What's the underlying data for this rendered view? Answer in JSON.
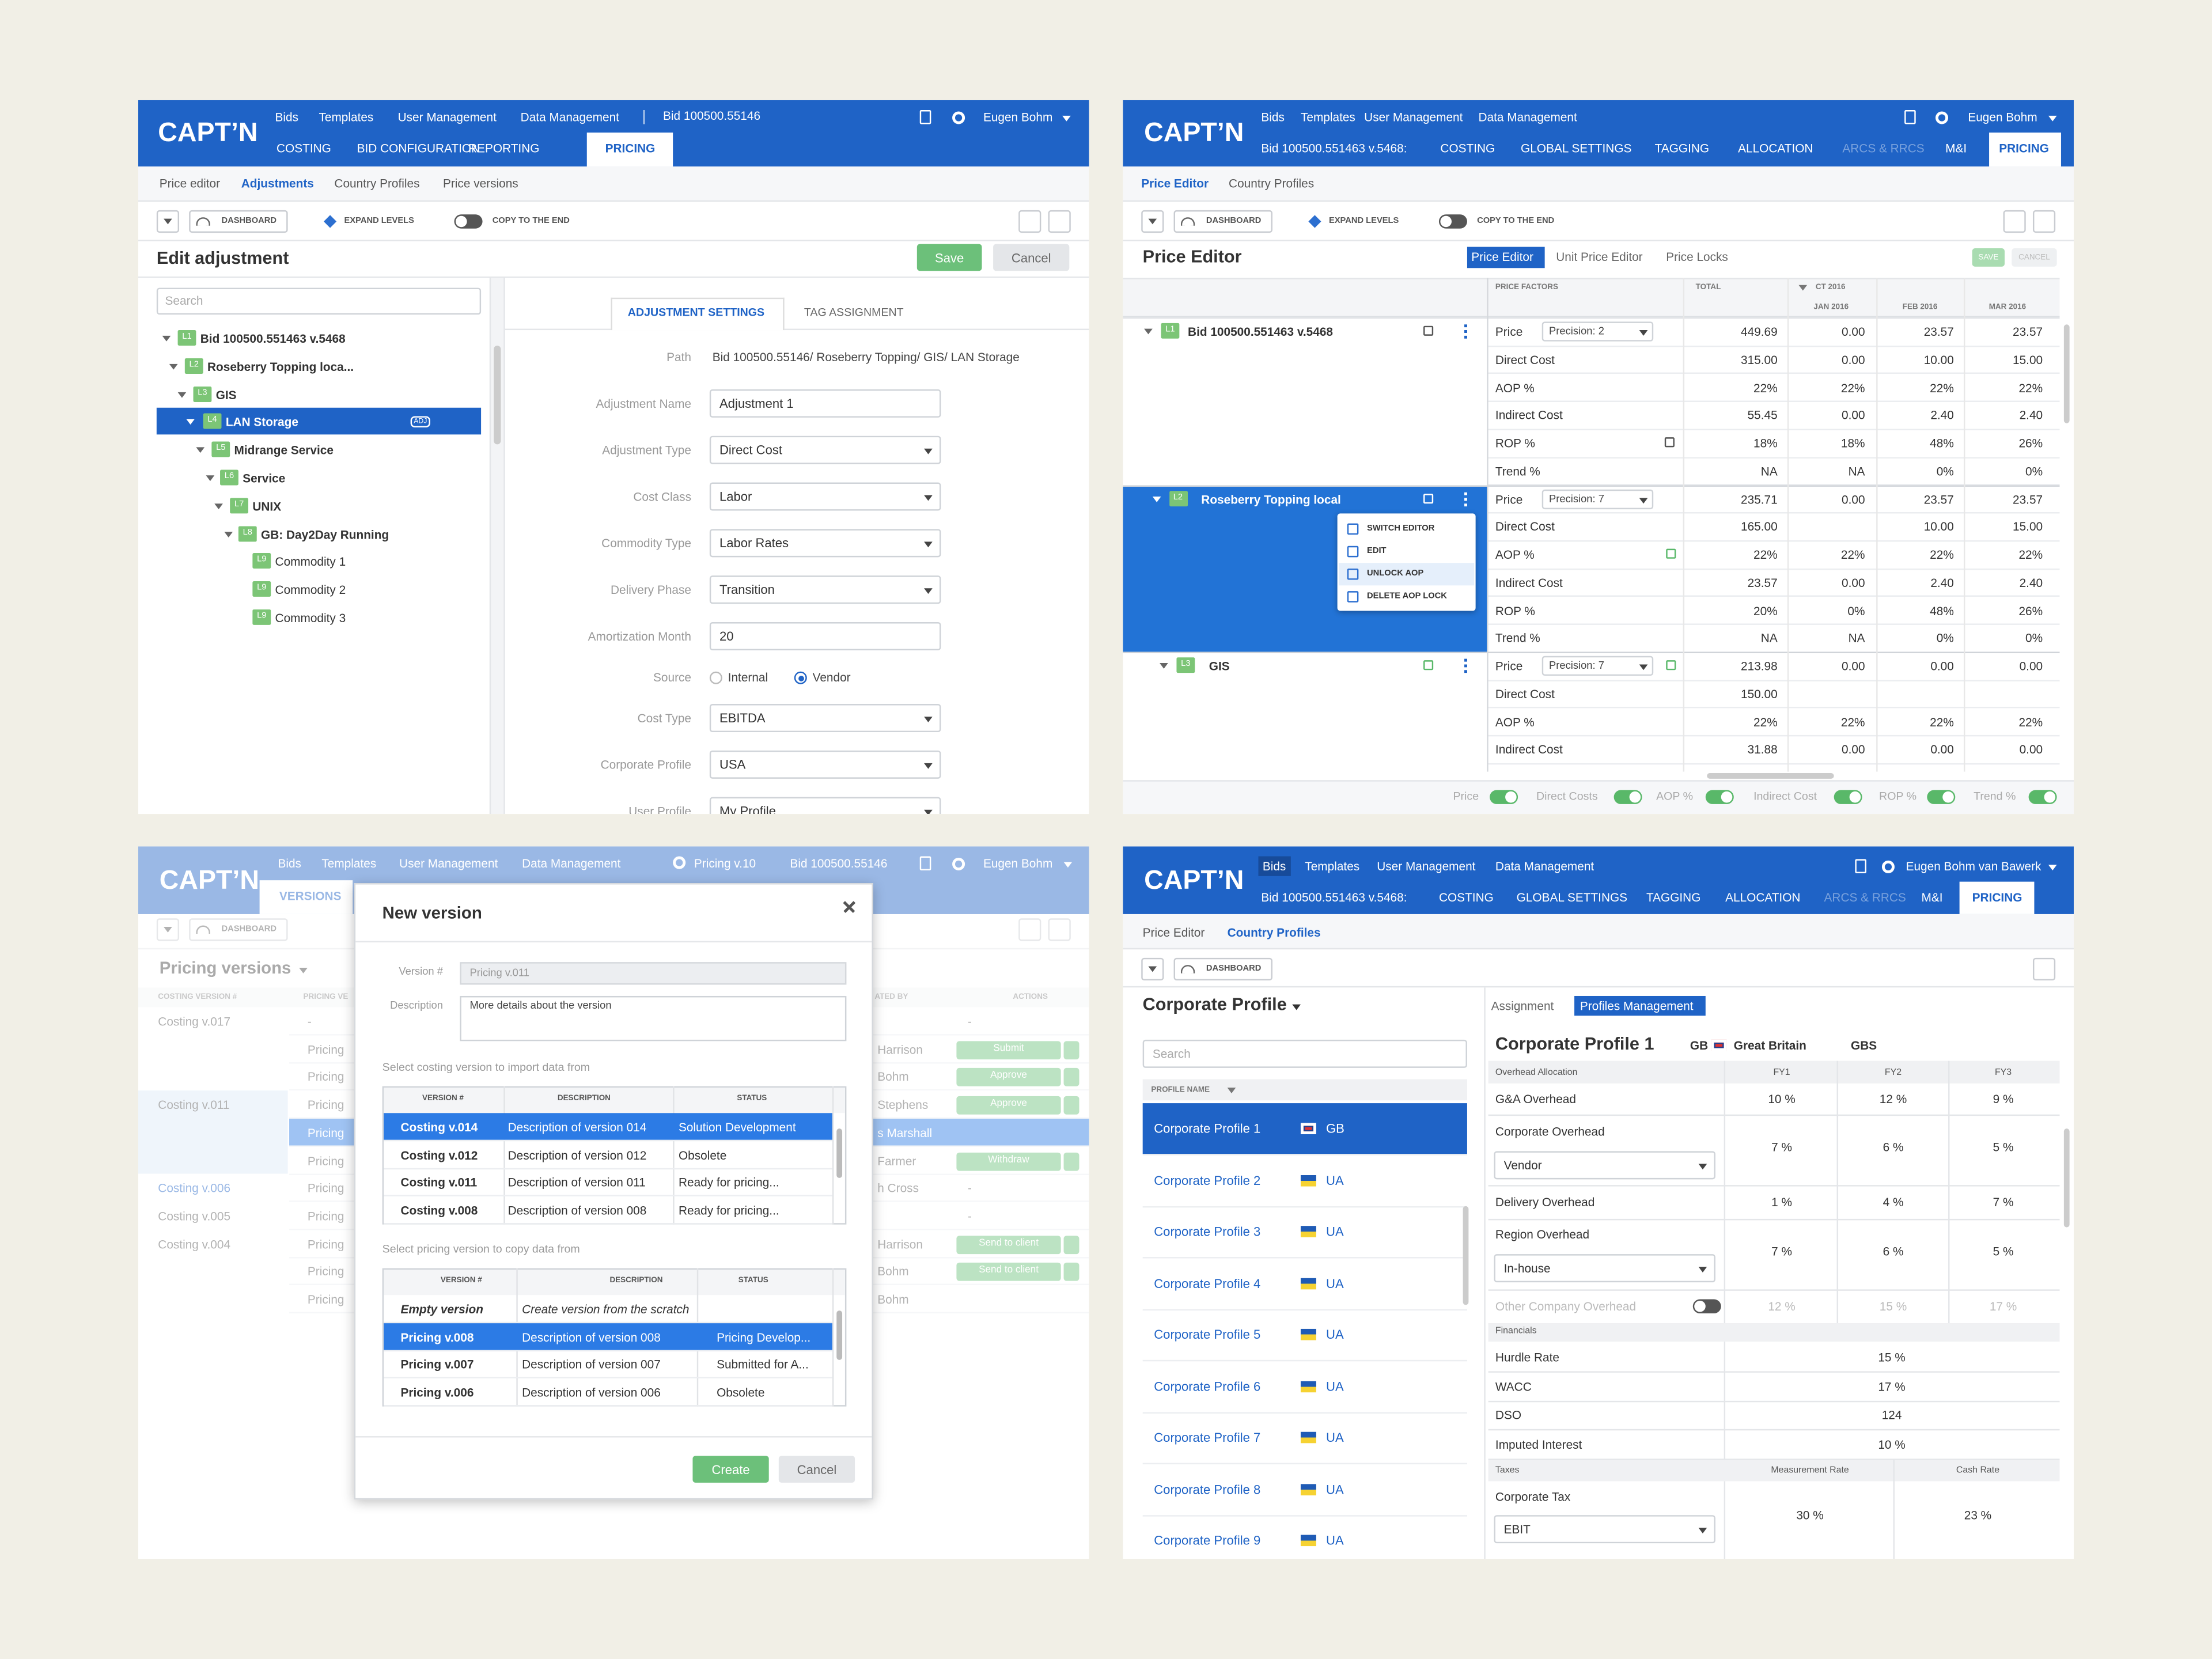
{
  "top_left": {
    "logo": "CAPT’N",
    "nav": [
      "Bids",
      "Templates",
      "User Management",
      "Data Management"
    ],
    "bid": "Bid 100500.55146",
    "user": "Eugen Bohm",
    "tabs": [
      "COSTING",
      "BID CONFIGURATION",
      "REPORTING",
      "PRICING"
    ],
    "subtabs": [
      "Price editor",
      "Adjustments",
      "Country Profiles",
      "Price versions"
    ],
    "toolbar": [
      "DASHBOARD",
      "EXPAND LEVELS",
      "COPY TO THE END"
    ],
    "title": "Edit adjustment",
    "buttons": [
      "Save",
      "Cancel"
    ],
    "search": "Search",
    "tree": [
      {
        "level": "L1",
        "label": "Bid 100500.551463 v.5468"
      },
      {
        "level": "L2",
        "label": "Roseberry Topping loca..."
      },
      {
        "level": "L3",
        "label": "GIS"
      },
      {
        "level": "L4",
        "label": "LAN Storage"
      },
      {
        "level": "L5",
        "label": "Midrange Service"
      },
      {
        "level": "L6",
        "label": "Service"
      },
      {
        "level": "L7",
        "label": "UNIX"
      },
      {
        "level": "L8",
        "label": "GB: Day2Day Running"
      },
      {
        "level": "L9",
        "label": "Commodity 1"
      },
      {
        "level": "L9",
        "label": "Commodity 2"
      },
      {
        "level": "L9",
        "label": "Commodity 3"
      }
    ],
    "tree_selected": 3,
    "badge": "ADJ",
    "form_tabs": [
      "ADJUSTMENT SETTINGS",
      "TAG ASSIGNMENT"
    ],
    "path": {
      "label": "Path",
      "value": "Bid 100500.55146/ Roseberry Topping/ GIS/ LAN Storage"
    },
    "fields": [
      {
        "label": "Adjustment Name",
        "value": "Adjustment 1"
      },
      {
        "label": "Adjustment Type",
        "value": "Direct Cost"
      },
      {
        "label": "Cost Class",
        "value": "Labor"
      },
      {
        "label": "Commodity Type",
        "value": "Labor Rates"
      },
      {
        "label": "Delivery Phase",
        "value": "Transition"
      },
      {
        "label": "Amortization Month",
        "value": "20"
      }
    ],
    "source": {
      "label": "Source",
      "options": [
        "Internal",
        "Vendor"
      ],
      "selected": 1
    },
    "fields_after": [
      {
        "label": "Cost Type",
        "value": "EBITDA"
      },
      {
        "label": "Corporate Profile",
        "value": "USA"
      },
      {
        "label": "User Profile",
        "value": "My Profile"
      }
    ]
  },
  "top_right": {
    "logo": "CAPT’N",
    "nav": [
      "Bids",
      "Templates",
      "User Management",
      "Data Management"
    ],
    "user": "Eugen Bohm",
    "bid": "Bid 100500.551463 v.5468:",
    "tabs": [
      "COSTING",
      "GLOBAL SETTINGS",
      "TAGGING",
      "ALLOCATION",
      "ARCS & RRCS",
      "M&I",
      "PRICING"
    ],
    "subtabs": [
      "Price Editor",
      "Country Profiles"
    ],
    "toolbar": [
      "DASHBOARD",
      "EXPAND LEVELS",
      "COPY TO THE END"
    ],
    "title": "Price Editor",
    "modes": [
      "Price Editor",
      "Unit Price Editor",
      "Price Locks"
    ],
    "buttons": [
      "SAVE",
      "CANCEL"
    ],
    "columns": [
      "PRICE FACTORS",
      "TOTAL"
    ],
    "period": "CT 2016",
    "months": [
      "JAN 2016",
      "FEB 2016",
      "MAR 2016"
    ],
    "groups": [
      {
        "level": "L1",
        "label": "Bid 100500.551463 v.5468",
        "precision": "Precision: 2",
        "rows": [
          [
            "Price",
            "449.69",
            "0.00",
            "23.57",
            "23.57"
          ],
          [
            "Direct Cost",
            "315.00",
            "0.00",
            "10.00",
            "15.00"
          ],
          [
            "AOP %",
            "22%",
            "22%",
            "22%",
            "22%"
          ],
          [
            "Indirect Cost",
            "55.45",
            "0.00",
            "2.40",
            "2.40"
          ],
          [
            "ROP %",
            "18%",
            "18%",
            "48%",
            "26%"
          ],
          [
            "Trend %",
            "NA",
            "NA",
            "0%",
            "0%"
          ]
        ]
      },
      {
        "level": "L2",
        "label": "Roseberry Topping local",
        "precision": "Precision: 7",
        "rows": [
          [
            "Price",
            "235.71",
            "0.00",
            "23.57",
            "23.57"
          ],
          [
            "Direct Cost",
            "165.00",
            null,
            "10.00",
            "15.00"
          ],
          [
            "AOP %",
            "22%",
            "22%",
            "22%",
            "22%"
          ],
          [
            "Indirect Cost",
            "23.57",
            "0.00",
            "2.40",
            "2.40"
          ],
          [
            "ROP %",
            "20%",
            "0%",
            "48%",
            "26%"
          ],
          [
            "Trend %",
            "NA",
            "NA",
            "0%",
            "0%"
          ]
        ]
      },
      {
        "level": "L3",
        "label": "GIS",
        "precision": "Precision: 7",
        "rows": [
          [
            "Price",
            "213.98",
            "0.00",
            "0.00",
            "0.00"
          ],
          [
            "Direct Cost",
            "150.00",
            null,
            null,
            null
          ],
          [
            "AOP %",
            "22%",
            "22%",
            "22%",
            "22%"
          ],
          [
            "Indirect Cost",
            "31.88",
            "0.00",
            "0.00",
            "0.00"
          ]
        ]
      }
    ],
    "selected_group": 1,
    "menu": [
      "SWITCH EDITOR",
      "EDIT",
      "UNLOCK AOP",
      "DELETE AOP LOCK"
    ],
    "menu_highlight": 2,
    "toggles": [
      "Price",
      "Direct Costs",
      "AOP %",
      "Indirect Cost",
      "ROP %",
      "Trend %"
    ]
  },
  "bottom_left": {
    "logo": "CAPT’N",
    "nav": [
      "Bids",
      "Templates",
      "User Management",
      "Data Management"
    ],
    "version": "Pricing v.10",
    "bid": "Bid 100500.55146",
    "user": "Eugen Bohm",
    "tab": "VERSIONS",
    "toolbar": [
      "DASHBOARD"
    ],
    "title": "Pricing versions",
    "columns": [
      "COSTING VERSION #",
      "PRICING VE",
      "ATED BY",
      "ACTIONS"
    ],
    "rows": [
      {
        "costing": "Costing v.017",
        "pricing": "-",
        "by": null,
        "action": "-"
      },
      {
        "costing": null,
        "pricing": "Pricing",
        "by": "Harrison",
        "action": "Submit"
      },
      {
        "costing": null,
        "pricing": "Pricing",
        "by": "Bohm",
        "action": "Approve"
      },
      {
        "costing": "Costing v.011",
        "pricing": "Pricing",
        "by": "Stephens",
        "action": "Approve"
      },
      {
        "costing": null,
        "pricing": "Pricing",
        "by": "s Marshall",
        "action": null
      },
      {
        "costing": null,
        "pricing": "Pricing",
        "by": "Farmer",
        "action": "Withdraw"
      },
      {
        "costing": "Costing v.006",
        "pricing": "Pricing",
        "by": "h Cross",
        "action": "-"
      },
      {
        "costing": "Costing v.005",
        "pricing": "Pricing",
        "by": null,
        "action": "-"
      },
      {
        "costing": "Costing v.004",
        "pricing": "Pricing",
        "by": "Harrison",
        "action": "Send to client"
      },
      {
        "costing": null,
        "pricing": "Pricing",
        "by": "Bohm",
        "action": "Send to client"
      },
      {
        "costing": null,
        "pricing": "Pricing",
        "by": "Bohm",
        "action": null
      }
    ],
    "selected_row": 4,
    "modal": {
      "title": "New version",
      "version_label": "Version #",
      "version": "Pricing v.011",
      "description_label": "Description",
      "description": "More details about the version",
      "costing_prompt": "Select costing version to import data from",
      "costing_columns": [
        "VERSION #",
        "DESCRIPTION",
        "STATUS"
      ],
      "costing_rows": [
        [
          "Costing v.014",
          "Description of version 014",
          "Solution Development"
        ],
        [
          "Costing v.012",
          "Description of version 012",
          "Obsolete"
        ],
        [
          "Costing v.011",
          "Description of version 011",
          "Ready for pricing..."
        ],
        [
          "Costing v.008",
          "Description of version 008",
          "Ready for pricing..."
        ]
      ],
      "costing_selected": 0,
      "pricing_prompt": "Select pricing version to copy data from",
      "pricing_columns": [
        "VERSION #",
        "DESCRIPTION",
        "STATUS"
      ],
      "pricing_rows": [
        [
          "Empty version",
          "Create version from the scratch",
          null
        ],
        [
          "Pricing v.008",
          "Description of version 008",
          "Pricing Develop..."
        ],
        [
          "Pricing v.007",
          "Description of version 007",
          "Submitted for A..."
        ],
        [
          "Pricing v.006",
          "Description of version 006",
          "Obsolete"
        ]
      ],
      "pricing_selected": 1,
      "buttons": [
        "Create",
        "Cancel"
      ]
    }
  },
  "bottom_right": {
    "logo": "CAPT’N",
    "nav": [
      "Bids",
      "Templates",
      "User Management",
      "Data Management"
    ],
    "user": "Eugen Bohm van Bawerk",
    "bid": "Bid 100500.551463 v.5468:",
    "tabs": [
      "COSTING",
      "GLOBAL SETTINGS",
      "TAGGING",
      "ALLOCATION",
      "ARCS & RRCS",
      "M&I",
      "PRICING"
    ],
    "subtabs": [
      "Price Editor",
      "Country Profiles"
    ],
    "toolbar": [
      "DASHBOARD"
    ],
    "title": "Corporate Profile",
    "views": [
      "Assignment",
      "Profiles Management"
    ],
    "search": "Search",
    "list_header": "PROFILE NAME",
    "profiles": [
      {
        "name": "Corporate Profile 1",
        "country": "GB"
      },
      {
        "name": "Corporate Profile 2",
        "country": "UA"
      },
      {
        "name": "Corporate Profile 3",
        "country": "UA"
      },
      {
        "name": "Corporate Profile 4",
        "country": "UA"
      },
      {
        "name": "Corporate Profile 5",
        "country": "UA"
      },
      {
        "name": "Corporate Profile 6",
        "country": "UA"
      },
      {
        "name": "Corporate Profile 7",
        "country": "UA"
      },
      {
        "name": "Corporate Profile 8",
        "country": "UA"
      },
      {
        "name": "Corporate Profile 9",
        "country": "UA"
      }
    ],
    "selected_profile": 0,
    "detail": {
      "title": "Corporate Profile 1",
      "code": "GB",
      "country": "Great Britain",
      "region": "GBS",
      "overhead_header": "Overhead Allocation",
      "years": [
        "FY1",
        "FY2",
        "FY3"
      ],
      "overhead": [
        {
          "label": "G&A Overhead",
          "values": [
            "10 %",
            "12 %",
            "9 %"
          ]
        },
        {
          "label": "Corporate Overhead",
          "option": "Vendor",
          "values": [
            "7 %",
            "6 %",
            "5 %"
          ]
        },
        {
          "label": "Delivery Overhead",
          "values": [
            "1 %",
            "4 %",
            "7 %"
          ]
        },
        {
          "label": "Region Overhead",
          "option": "In-house",
          "values": [
            "7 %",
            "6 %",
            "5 %"
          ]
        },
        {
          "label": "Other Company Overhead",
          "values": [
            "12 %",
            "15 %",
            "17 %"
          ],
          "enabled": false
        }
      ],
      "financials_header": "Financials",
      "financials": [
        {
          "label": "Hurdle Rate",
          "value": "15 %"
        },
        {
          "label": "WACC",
          "value": "17 %"
        },
        {
          "label": "DSO",
          "value": "124"
        },
        {
          "label": "Imputed Interest",
          "value": "10 %"
        }
      ],
      "taxes_header": "Taxes",
      "tax_columns": [
        "Measurement Rate",
        "Cash Rate"
      ],
      "taxes": [
        {
          "label": "Corporate Tax",
          "option": "EBIT",
          "values": [
            "30 %",
            "23 %"
          ]
        }
      ]
    }
  }
}
